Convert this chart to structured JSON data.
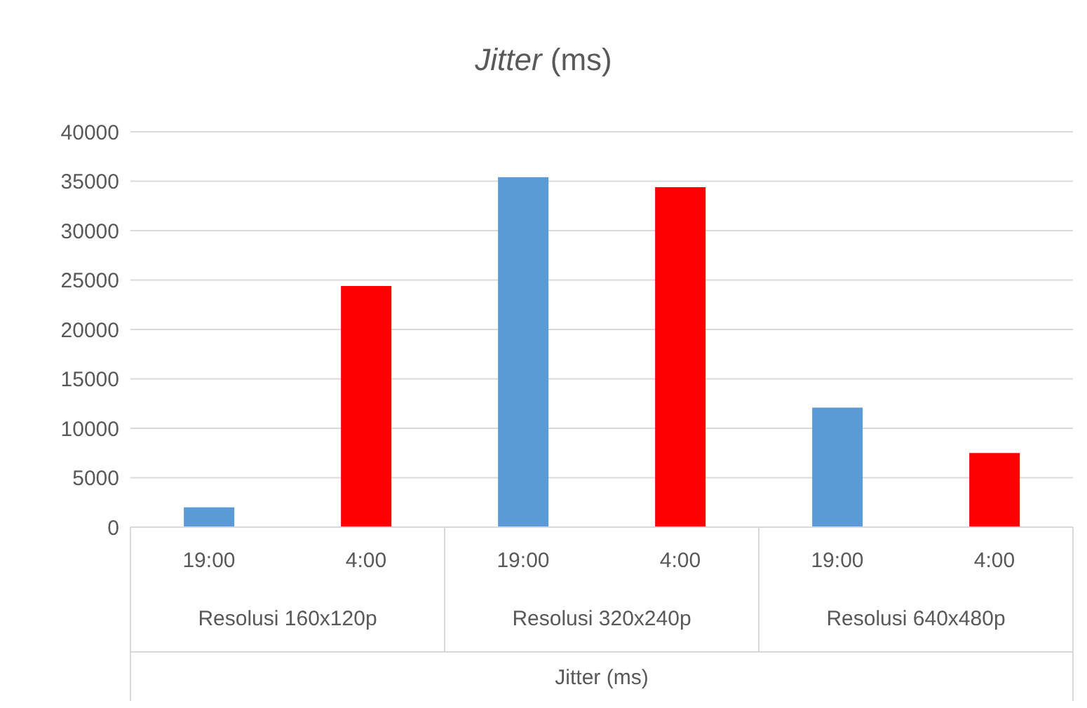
{
  "chart_data": {
    "type": "bar",
    "title": "Jitter (ms)",
    "xlabel": "Jitter (ms)",
    "categories": [
      "19:00",
      "4:00",
      "19:00",
      "4:00",
      "19:00",
      "4:00"
    ],
    "values": [
      2000,
      24400,
      35400,
      34400,
      12100,
      7500
    ],
    "colors": [
      "#5b9bd5",
      "#ff0000",
      "#5b9bd5",
      "#ff0000",
      "#5b9bd5",
      "#ff0000"
    ],
    "annotations": [
      "Resolusi 160x120p",
      "Resolusi 320x240p",
      "Resolusi 640x480p"
    ],
    "ylim": [
      0,
      40000
    ],
    "yticks": [
      0,
      5000,
      10000,
      15000,
      20000,
      25000,
      30000,
      35000,
      40000
    ],
    "grid": "y",
    "legend": false
  }
}
